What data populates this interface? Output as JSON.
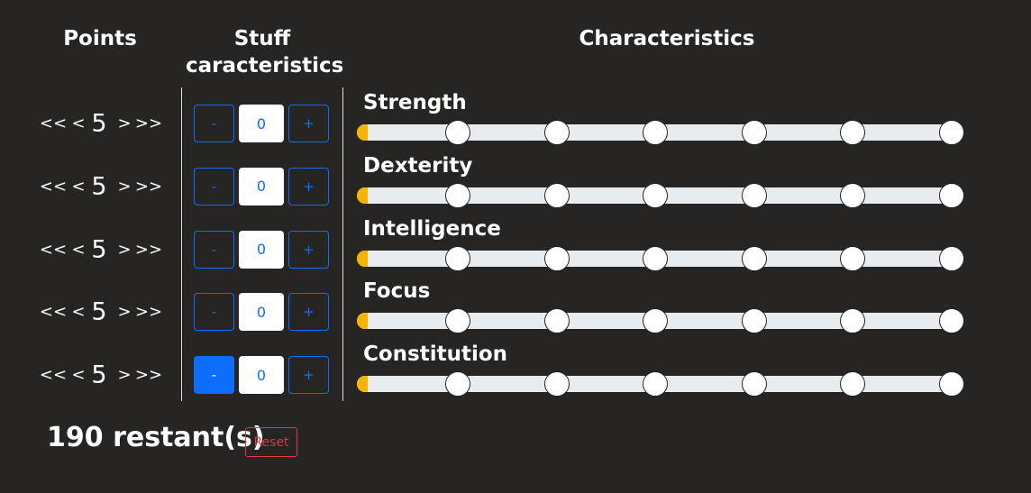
{
  "headers": {
    "points": "Points",
    "stuff": "Stuff caracteristics",
    "characteristics": "Characteristics"
  },
  "rows": [
    {
      "points": {
        "first": "<<",
        "prev": "<",
        "value": "5",
        "next": ">",
        "last": ">>"
      },
      "stuff": {
        "minus": "-",
        "value": "0",
        "plus": "+"
      },
      "name": "Strength"
    },
    {
      "points": {
        "first": "<<",
        "prev": "<",
        "value": "5",
        "next": ">",
        "last": ">>"
      },
      "stuff": {
        "minus": "-",
        "value": "0",
        "plus": "+"
      },
      "name": "Dexterity"
    },
    {
      "points": {
        "first": "<<",
        "prev": "<",
        "value": "5",
        "next": ">",
        "last": ">>"
      },
      "stuff": {
        "minus": "-",
        "value": "0",
        "plus": "+"
      },
      "name": "Intelligence"
    },
    {
      "points": {
        "first": "<<",
        "prev": "<",
        "value": "5",
        "next": ">",
        "last": ">>"
      },
      "stuff": {
        "minus": "-",
        "value": "0",
        "plus": "+"
      },
      "name": "Focus"
    },
    {
      "points": {
        "first": "<<",
        "prev": "<",
        "value": "5",
        "next": ">",
        "last": ">>"
      },
      "stuff": {
        "minus": "-",
        "value": "0",
        "plus": "+"
      },
      "name": "Constitution"
    }
  ],
  "footer": {
    "remaining": "190 restant(s)",
    "reset": "Reset"
  }
}
